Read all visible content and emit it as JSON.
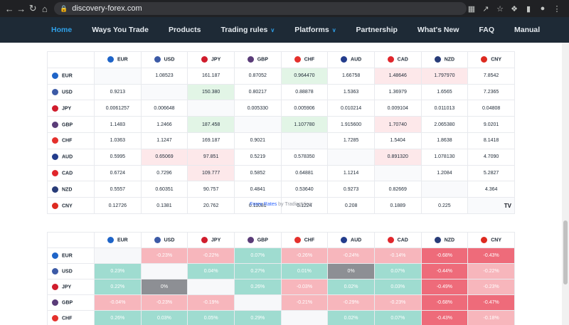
{
  "browser": {
    "url": "discovery-forex.com",
    "back_icon": "arrow-left-icon",
    "forward_icon": "arrow-right-icon",
    "reload_icon": "reload-icon",
    "home_icon": "home-icon"
  },
  "nav": {
    "items": [
      {
        "label": "Home",
        "active": true,
        "dropdown": false
      },
      {
        "label": "Ways You Trade",
        "active": false,
        "dropdown": false
      },
      {
        "label": "Products",
        "active": false,
        "dropdown": false
      },
      {
        "label": "Trading rules",
        "active": false,
        "dropdown": true
      },
      {
        "label": "Platforms",
        "active": false,
        "dropdown": true
      },
      {
        "label": "Partnership",
        "active": false,
        "dropdown": false
      },
      {
        "label": "What's New",
        "active": false,
        "dropdown": false
      },
      {
        "label": "FAQ",
        "active": false,
        "dropdown": false
      },
      {
        "label": "Manual",
        "active": false,
        "dropdown": false
      }
    ]
  },
  "currencies": [
    {
      "code": "EUR",
      "color": "#1e64c8"
    },
    {
      "code": "USD",
      "color": "#3c5aa6"
    },
    {
      "code": "JPY",
      "color": "#d01c2c"
    },
    {
      "code": "GBP",
      "color": "#5a3c78"
    },
    {
      "code": "CHF",
      "color": "#e4302c"
    },
    {
      "code": "AUD",
      "color": "#233c8c"
    },
    {
      "code": "CAD",
      "color": "#e0262c"
    },
    {
      "code": "NZD",
      "color": "#283c78"
    },
    {
      "code": "CNY",
      "color": "#dd2a20"
    }
  ],
  "cross_rates": {
    "rows": [
      {
        "code": "EUR",
        "cells": [
          "",
          "1.08523",
          "161.187",
          "0.87052",
          "0.964470",
          "1.66758",
          "1.48646",
          "1.797970",
          "7.8542"
        ],
        "tones": [
          "e",
          "",
          "",
          "",
          "g",
          "",
          "r",
          "r",
          ""
        ]
      },
      {
        "code": "USD",
        "cells": [
          "0.9213",
          "",
          "150.380",
          "0.80217",
          "0.88878",
          "1.5363",
          "1.36979",
          "1.6565",
          "7.2365"
        ],
        "tones": [
          "",
          "e",
          "g",
          "",
          "",
          "",
          "",
          "",
          ""
        ]
      },
      {
        "code": "JPY",
        "cells": [
          "0.0061257",
          "0.006648",
          "",
          "0.005330",
          "0.005906",
          "0.010214",
          "0.009104",
          "0.011013",
          "0.04808"
        ],
        "tones": [
          "",
          "",
          "e",
          "",
          "",
          "",
          "",
          "",
          ""
        ]
      },
      {
        "code": "GBP",
        "cells": [
          "1.1483",
          "1.2466",
          "187.458",
          "",
          "1.107780",
          "1.915600",
          "1.70740",
          "2.065380",
          "9.0201"
        ],
        "tones": [
          "",
          "",
          "g",
          "e",
          "g",
          "",
          "r",
          "",
          ""
        ]
      },
      {
        "code": "CHF",
        "cells": [
          "1.0363",
          "1.1247",
          "169.187",
          "0.9021",
          "",
          "1.7285",
          "1.5404",
          "1.8638",
          "8.1418"
        ],
        "tones": [
          "",
          "",
          "",
          "",
          "e",
          "",
          "",
          "",
          ""
        ]
      },
      {
        "code": "AUD",
        "cells": [
          "0.5995",
          "0.65069",
          "97.851",
          "0.5219",
          "0.578350",
          "",
          "0.891320",
          "1.078130",
          "4.7090"
        ],
        "tones": [
          "",
          "r",
          "r",
          "",
          "",
          "e",
          "r",
          "",
          ""
        ]
      },
      {
        "code": "CAD",
        "cells": [
          "0.6724",
          "0.7296",
          "109.777",
          "0.5852",
          "0.64881",
          "1.1214",
          "",
          "1.2084",
          "5.2827"
        ],
        "tones": [
          "",
          "",
          "r",
          "",
          "",
          "",
          "e",
          "",
          ""
        ]
      },
      {
        "code": "NZD",
        "cells": [
          "0.5557",
          "0.60351",
          "90.757",
          "0.4841",
          "0.53640",
          "0.9273",
          "0.82669",
          "",
          "4.364"
        ],
        "tones": [
          "",
          "",
          "",
          "",
          "",
          "",
          "",
          "e",
          ""
        ]
      },
      {
        "code": "CNY",
        "cells": [
          "0.12726",
          "0.1381",
          "20.762",
          "0.11081",
          "0.1224",
          "0.208",
          "0.1889",
          "0.225",
          ""
        ],
        "tones": [
          "",
          "",
          "",
          "",
          "",
          "",
          "",
          "",
          "e"
        ]
      }
    ],
    "logo_text": "TV",
    "credit_link": "Forex Rates",
    "credit_suffix": " by TradingView"
  },
  "heatmap": {
    "rows": [
      {
        "code": "EUR",
        "cells": [
          "",
          "-0.23%",
          "-0.22%",
          "0.07%",
          "-0.26%",
          "-0.24%",
          "-0.14%",
          "-0.68%",
          "-0.43%"
        ],
        "tones": [
          "h-none",
          "h-pink",
          "h-pink",
          "h-teal",
          "h-pink",
          "h-pink",
          "h-pink",
          "h-red",
          "h-red"
        ]
      },
      {
        "code": "USD",
        "cells": [
          "0.23%",
          "",
          "0.04%",
          "0.27%",
          "0.01%",
          "0%",
          "0.07%",
          "-0.44%",
          "-0.22%"
        ],
        "tones": [
          "h-teal",
          "h-none",
          "h-teal",
          "h-teal",
          "h-teal",
          "h-gray",
          "h-teal",
          "h-red",
          "h-pink"
        ]
      },
      {
        "code": "JPY",
        "cells": [
          "0.22%",
          "0%",
          "",
          "0.26%",
          "-0.03%",
          "0.02%",
          "0.03%",
          "-0.49%",
          "-0.23%"
        ],
        "tones": [
          "h-teal",
          "h-gray",
          "h-none",
          "h-teal",
          "h-pink",
          "h-teal",
          "h-teal",
          "h-red",
          "h-pink"
        ]
      },
      {
        "code": "GBP",
        "cells": [
          "-0.04%",
          "-0.23%",
          "-0.19%",
          "",
          "-0.21%",
          "-0.29%",
          "-0.23%",
          "-0.68%",
          "-0.47%"
        ],
        "tones": [
          "h-pink",
          "h-pink",
          "h-pink",
          "h-none",
          "h-pink",
          "h-pink",
          "h-pink",
          "h-red",
          "h-red"
        ]
      },
      {
        "code": "CHF",
        "cells": [
          "0.26%",
          "0.03%",
          "0.05%",
          "0.29%",
          "",
          "0.02%",
          "0.07%",
          "-0.43%",
          "-0.18%"
        ],
        "tones": [
          "h-teal",
          "h-teal",
          "h-teal",
          "h-teal",
          "h-none",
          "h-teal",
          "h-teal",
          "h-red",
          "h-pink"
        ]
      }
    ]
  }
}
